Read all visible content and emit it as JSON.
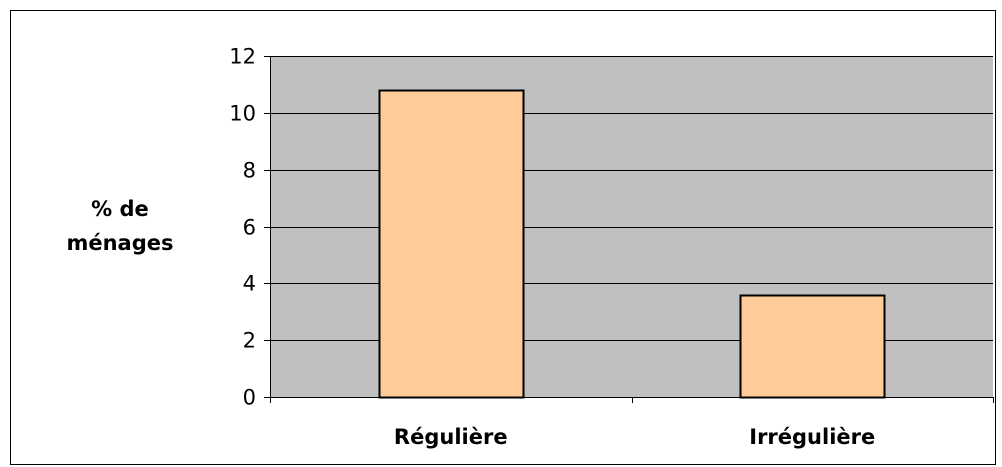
{
  "chart_data": {
    "type": "bar",
    "title": "",
    "xlabel": "",
    "ylabel_lines": [
      "% de",
      "ménages"
    ],
    "categories": [
      "Régulière",
      "Irrégulière"
    ],
    "values": [
      10.8,
      3.6
    ],
    "ylim": [
      0,
      12
    ],
    "yticks": [
      0,
      2,
      4,
      6,
      8,
      10,
      12
    ],
    "grid": true,
    "legend": "none",
    "colors": {
      "plot_background": "#c0c0c0",
      "bar_fill": "#ffcc99",
      "bar_stroke": "#000000",
      "grid": "#000000"
    }
  }
}
